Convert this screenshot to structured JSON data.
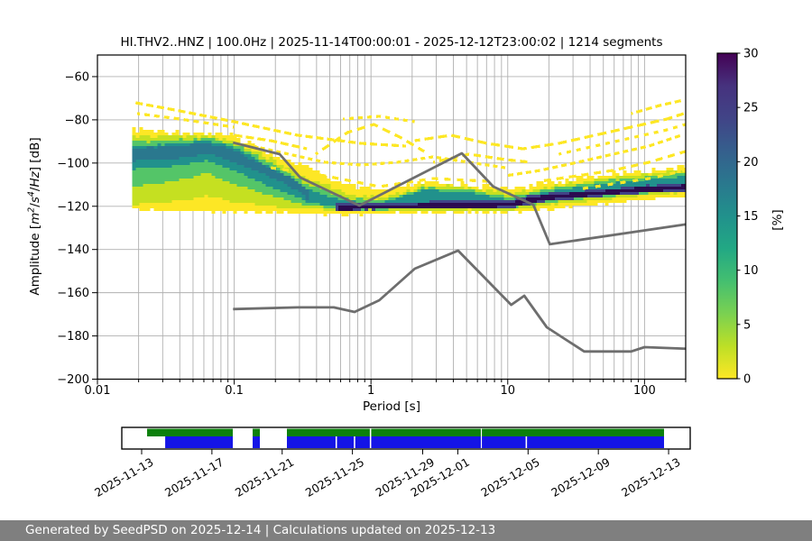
{
  "figure": {
    "footer": "Generated by SeedPSD on 2025-12-14 | Calculations updated on 2025-12-13"
  },
  "chart_data": {
    "type": "heatmap",
    "title": "HI.THV2..HNZ | 100.0Hz | 2025-11-14T00:00:01 - 2025-12-12T23:00:02 | 1214 segments",
    "xlabel": "Period [s]",
    "ylabel": "Amplitude [m2/s4/Hz] [dB]",
    "ylabel_parts": [
      {
        "t": "Amplitude ["
      },
      {
        "t": "m",
        "i": true
      },
      {
        "t": "2",
        "i": true,
        "s": true
      },
      {
        "t": "/"
      },
      {
        "t": "s",
        "i": true
      },
      {
        "t": "4",
        "i": true,
        "s": true
      },
      {
        "t": "/"
      },
      {
        "t": "Hz",
        "i": true
      },
      {
        "t": "] [dB]"
      }
    ],
    "xscale": "log",
    "xlim": [
      0.01,
      200
    ],
    "ylim": [
      -200,
      -50
    ],
    "xticks": {
      "values": [
        0.01,
        0.1,
        1,
        10,
        100
      ],
      "labels": [
        "0.01",
        "0.1",
        "1",
        "10",
        "100"
      ]
    },
    "yticks": {
      "values": [
        -60,
        -80,
        -100,
        -120,
        -140,
        -160,
        -180,
        -200
      ],
      "labels": [
        "−60",
        "−80",
        "−100",
        "−120",
        "−140",
        "−160",
        "−180",
        "−200"
      ]
    },
    "grid": true,
    "grid_color": "#b0b0b0",
    "colorbar": {
      "label": "[%]",
      "min": 0,
      "max": 30,
      "ticks": [
        0,
        5,
        10,
        15,
        20,
        25,
        30
      ],
      "colormap": "viridis_r",
      "stops_bottom_to_top": [
        "#fde725",
        "#bddf26",
        "#7ad151",
        "#44bf70",
        "#22a884",
        "#21918c",
        "#2a788e",
        "#355f8d",
        "#414487",
        "#46327e",
        "#440154"
      ]
    },
    "noise_models": {
      "color": "#6e6e6e",
      "high_noise_model": [
        [
          0.098,
          -90.5
        ],
        [
          0.215,
          -95.9
        ],
        [
          0.304,
          -106.7
        ],
        [
          0.822,
          -119.7
        ],
        [
          4.62,
          -95.5
        ],
        [
          7.84,
          -110.9
        ],
        [
          15.4,
          -119.3
        ],
        [
          20.3,
          -137.6
        ],
        [
          199,
          -128.4
        ]
      ],
      "low_noise_model": [
        [
          0.098,
          -167.6
        ],
        [
          0.291,
          -166.8
        ],
        [
          0.535,
          -166.8
        ],
        [
          0.759,
          -168.9
        ],
        [
          1.15,
          -163.5
        ],
        [
          2.09,
          -148.9
        ],
        [
          4.33,
          -140.5
        ],
        [
          10.6,
          -165.6
        ],
        [
          13.2,
          -161.4
        ],
        [
          19.3,
          -176.0
        ],
        [
          36.2,
          -187.2
        ],
        [
          79.8,
          -187.2
        ],
        [
          100,
          -185.2
        ],
        [
          215,
          -186.0
        ]
      ]
    },
    "density_bands": [
      {
        "pct": 0.5,
        "color": "#fde725",
        "jitter": 3,
        "pts": [
          [
            0.018,
            -84.2,
            -121.8
          ],
          [
            0.03,
            -85.5,
            -122.2
          ],
          [
            0.062,
            -85.9,
            -122.2
          ],
          [
            0.1,
            -88.0,
            -122.6
          ],
          [
            0.185,
            -95.5,
            -123.0
          ],
          [
            0.34,
            -102.1,
            -123.4
          ],
          [
            0.625,
            -110.5,
            -123.8
          ],
          [
            1.15,
            -113.0,
            -123.4
          ],
          [
            2.45,
            -109.2,
            -123.0
          ],
          [
            5.2,
            -110.1,
            -123.0
          ],
          [
            9.6,
            -112.2,
            -123.0
          ],
          [
            23.6,
            -108.0,
            -120.9
          ],
          [
            58.8,
            -105.1,
            -118.4
          ],
          [
            199,
            -101.3,
            -115.1
          ]
        ]
      },
      {
        "pct": 2,
        "color": "#c5e021",
        "jitter": 2,
        "pts": [
          [
            0.018,
            -87.5,
            -119.3
          ],
          [
            0.04,
            -87.5,
            -117.2
          ],
          [
            0.062,
            -87.1,
            -115.5
          ],
          [
            0.1,
            -90.5,
            -118.0
          ],
          [
            0.185,
            -98.4,
            -120.5
          ],
          [
            0.34,
            -107.2,
            -121.3
          ],
          [
            0.625,
            -113.8,
            -122.2
          ],
          [
            1.15,
            -116.3,
            -122.2
          ],
          [
            2.45,
            -110.5,
            -121.8
          ],
          [
            5.2,
            -111.3,
            -121.8
          ],
          [
            9.6,
            -114.2,
            -121.8
          ],
          [
            23.6,
            -110.1,
            -118.8
          ],
          [
            58.8,
            -106.7,
            -116.3
          ],
          [
            199,
            -103.4,
            -113.4
          ]
        ]
      },
      {
        "pct": 5,
        "color": "#54c568",
        "jitter": 1.4,
        "pts": [
          [
            0.018,
            -90.0,
            -110.9
          ],
          [
            0.04,
            -89.2,
            -108.0
          ],
          [
            0.062,
            -88.4,
            -104.7
          ],
          [
            0.1,
            -91.7,
            -110.1
          ],
          [
            0.185,
            -100.5,
            -115.5
          ],
          [
            0.34,
            -110.1,
            -119.7
          ],
          [
            0.625,
            -115.9,
            -121.3
          ],
          [
            1.15,
            -117.6,
            -121.8
          ],
          [
            2.45,
            -111.3,
            -120.5
          ],
          [
            5.2,
            -112.6,
            -120.9
          ],
          [
            9.6,
            -115.9,
            -121.3
          ],
          [
            23.6,
            -111.3,
            -117.6
          ],
          [
            58.8,
            -108.0,
            -115.1
          ],
          [
            199,
            -104.7,
            -112.6
          ]
        ]
      },
      {
        "pct": 10,
        "color": "#21918c",
        "jitter": 1,
        "pts": [
          [
            0.018,
            -92.1,
            -103.0
          ],
          [
            0.04,
            -90.9,
            -101.3
          ],
          [
            0.062,
            -89.6,
            -98.8
          ],
          [
            0.1,
            -93.0,
            -103.8
          ],
          [
            0.185,
            -102.1,
            -111.3
          ],
          [
            0.34,
            -112.2,
            -118.0
          ],
          [
            0.625,
            -117.2,
            -120.9
          ],
          [
            1.15,
            -118.4,
            -121.3
          ],
          [
            2.45,
            -112.2,
            -118.4
          ],
          [
            5.2,
            -113.8,
            -120.1
          ],
          [
            9.6,
            -117.2,
            -120.9
          ],
          [
            23.6,
            -112.2,
            -116.3
          ],
          [
            58.8,
            -108.8,
            -114.2
          ],
          [
            199,
            -105.9,
            -111.7
          ]
        ]
      },
      {
        "pct": 15,
        "color": "#2a788e",
        "jitter": 0.8,
        "pts": [
          [
            0.018,
            -93.4,
            -99.2
          ],
          [
            0.04,
            -92.1,
            -97.6
          ],
          [
            0.062,
            -90.5,
            -95.5
          ],
          [
            0.1,
            -94.2,
            -100.1
          ],
          [
            0.159,
            -100.9,
            -105.1
          ],
          [
            0.215,
            -104.7,
            -108.4
          ],
          [
            0.291,
            -109.2,
            -113.4
          ],
          [
            0.34,
            -112.2,
            -117.2
          ]
        ]
      },
      {
        "pct": 18,
        "color": "#414487",
        "jitter": 0.5,
        "pts": [
          [
            0.553,
            -118.4,
            -121.8
          ],
          [
            1.8,
            -118.0,
            -121.3
          ],
          [
            5.2,
            -117.2,
            -120.9
          ],
          [
            10.3,
            -116.8,
            -120.5
          ],
          [
            17.3,
            -114.2,
            -118.0
          ],
          [
            37.4,
            -112.6,
            -115.9
          ],
          [
            79.8,
            -110.9,
            -114.2
          ],
          [
            199,
            -109.2,
            -113.0
          ]
        ]
      },
      {
        "pct": 28,
        "color": "#2c0b50",
        "jitter": 0.4,
        "pts": [
          [
            0.578,
            -119.5,
            -121.6
          ],
          [
            1.8,
            -119.1,
            -121.2
          ],
          [
            5.2,
            -118.6,
            -120.7
          ],
          [
            10.3,
            -118.0,
            -120.1
          ],
          [
            17.3,
            -115.1,
            -117.2
          ],
          [
            37.4,
            -113.4,
            -115.3
          ],
          [
            79.8,
            -111.7,
            -113.6
          ],
          [
            199,
            -110.1,
            -112.2
          ]
        ]
      }
    ],
    "low_probability_traces": {
      "color": "#fde725",
      "polylines": [
        [
          [
            0.019,
            -72.1
          ],
          [
            0.04,
            -75.4
          ],
          [
            0.1,
            -80.9
          ],
          [
            0.291,
            -87.1
          ],
          [
            0.847,
            -90.5
          ],
          [
            1.8,
            -92.5
          ]
        ],
        [
          [
            0.0195,
            -77.1
          ],
          [
            0.04,
            -79.6
          ],
          [
            0.1,
            -83.8
          ]
        ],
        [
          [
            0.394,
            -95.5
          ],
          [
            0.672,
            -86.3
          ],
          [
            1.05,
            -82.5
          ],
          [
            1.67,
            -88.0
          ],
          [
            2.45,
            -94.6
          ]
        ],
        [
          [
            0.136,
            -92.1
          ],
          [
            0.251,
            -95.5
          ],
          [
            0.462,
            -99.2
          ],
          [
            0.847,
            -101.3
          ],
          [
            1.55,
            -100.1
          ],
          [
            2.85,
            -96.7
          ],
          [
            5.21,
            -100.1
          ],
          [
            9.6,
            -102.6
          ]
        ],
        [
          [
            0.185,
            -102.1
          ],
          [
            0.462,
            -106.3
          ],
          [
            1.15,
            -110.5
          ],
          [
            2.85,
            -106.7
          ],
          [
            7.07,
            -108.4
          ]
        ],
        [
          [
            2.09,
            -89.6
          ],
          [
            3.85,
            -87.5
          ],
          [
            7.07,
            -90.9
          ],
          [
            12.9,
            -93.8
          ],
          [
            23.6,
            -90.5
          ],
          [
            43.4,
            -87.1
          ],
          [
            79.8,
            -83.4
          ],
          [
            146,
            -79.2
          ],
          [
            193,
            -77.1
          ]
        ],
        [
          [
            9.6,
            -106.3
          ],
          [
            17.3,
            -103.4
          ],
          [
            32.3,
            -100.1
          ],
          [
            58.8,
            -96.3
          ],
          [
            108,
            -92.1
          ],
          [
            186,
            -87.5
          ]
        ],
        [
          [
            17.3,
            -108.4
          ],
          [
            32.3,
            -105.9
          ],
          [
            58.8,
            -103.0
          ],
          [
            108,
            -99.2
          ],
          [
            199,
            -95.1
          ]
        ],
        [
          [
            23.6,
            -95.9
          ],
          [
            43.4,
            -92.5
          ],
          [
            79.8,
            -88.4
          ],
          [
            146,
            -84.2
          ],
          [
            199,
            -81.7
          ]
        ],
        [
          [
            79.8,
            -76.7
          ],
          [
            129,
            -73.4
          ],
          [
            193,
            -70.4
          ]
        ],
        [
          [
            32.3,
            -112.6
          ],
          [
            58.8,
            -110.1
          ],
          [
            108,
            -106.7
          ],
          [
            199,
            -103.4
          ]
        ],
        [
          [
            0.1,
            -86.7
          ],
          [
            0.185,
            -90.0
          ],
          [
            0.34,
            -93.4
          ]
        ],
        [
          [
            0.625,
            -79.2
          ],
          [
            1.15,
            -77.9
          ],
          [
            2.09,
            -81.3
          ]
        ],
        [
          [
            2.85,
            -99.2
          ],
          [
            5.21,
            -95.9
          ],
          [
            9.6,
            -98.0
          ],
          [
            14.8,
            -100.1
          ]
        ]
      ]
    },
    "availability": {
      "axis_days": [
        -1.13,
        31.23
      ],
      "ticks": [
        {
          "day": 0,
          "label": "2025-11-13"
        },
        {
          "day": 4,
          "label": "2025-11-17"
        },
        {
          "day": 8,
          "label": "2025-11-21"
        },
        {
          "day": 12,
          "label": "2025-11-25"
        },
        {
          "day": 16,
          "label": "2025-11-29"
        },
        {
          "day": 18,
          "label": "2025-12-01"
        },
        {
          "day": 22,
          "label": "2025-12-05"
        },
        {
          "day": 26,
          "label": "2025-12-09"
        },
        {
          "day": 30,
          "label": "2025-12-13"
        }
      ],
      "green_color": "#0c800c",
      "blue_color": "#1414e6",
      "green_segments_days": [
        [
          0.31,
          5.19
        ],
        [
          6.32,
          6.73
        ],
        [
          8.27,
          12.99
        ],
        [
          13.07,
          19.31
        ],
        [
          19.37,
          29.74
        ]
      ],
      "blue_segments_days": [
        [
          1.34,
          5.19
        ],
        [
          6.32,
          6.73
        ],
        [
          8.27,
          11.04
        ],
        [
          11.12,
          12.08
        ],
        [
          12.16,
          12.99
        ],
        [
          13.07,
          19.31
        ],
        [
          19.37,
          21.86
        ],
        [
          21.94,
          29.74
        ]
      ]
    }
  }
}
